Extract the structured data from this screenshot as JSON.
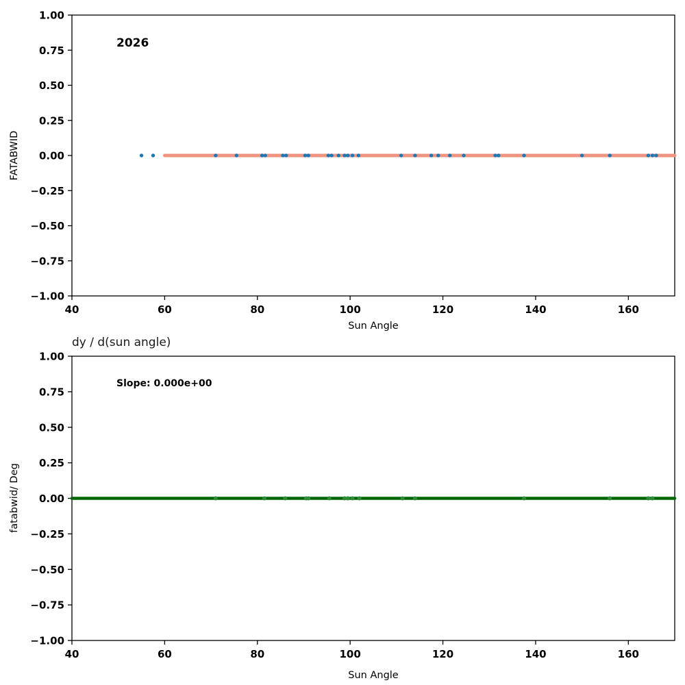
{
  "chart_data": [
    {
      "type": "scatter",
      "annotation": "2026",
      "xlabel": "Sun Angle",
      "ylabel": "FATABWID",
      "xlim": [
        40,
        170
      ],
      "ylim": [
        -1,
        1
      ],
      "xticks": [
        [
          40,
          "40"
        ],
        [
          60,
          "60"
        ],
        [
          80,
          "80"
        ],
        [
          100,
          "100"
        ],
        [
          120,
          "120"
        ],
        [
          140,
          "140"
        ],
        [
          160,
          "160"
        ]
      ],
      "yticks": [
        [
          1,
          "1.00"
        ],
        [
          0.75,
          "0.75"
        ],
        [
          0.5,
          "0.50"
        ],
        [
          0.25,
          "0.25"
        ],
        [
          0,
          "0.00"
        ],
        [
          -0.25,
          "−0.25"
        ],
        [
          -0.5,
          "−0.50"
        ],
        [
          -0.75,
          "−0.75"
        ],
        [
          -1,
          "−1.00"
        ]
      ],
      "scatter_color": "#1f77b4",
      "line_color": "#ee9480",
      "line_x": [
        60,
        170
      ],
      "line_y": 0,
      "scatter_y": 0,
      "scatter_x": [
        55,
        57.5,
        71,
        75.5,
        81,
        81.7,
        85.5,
        86.2,
        90.3,
        91,
        95.3,
        96,
        97.5,
        98.8,
        99.5,
        100.5,
        101.8,
        111,
        114,
        117.5,
        119,
        121.5,
        124.5,
        131.3,
        132,
        137.5,
        150,
        156,
        164.3,
        165.2,
        166
      ],
      "grid": false,
      "legend": "none"
    },
    {
      "type": "scatter",
      "title": "dy / d(sun angle)",
      "annotation": "Slope: 0.000e+00",
      "xlabel": "Sun Angle",
      "ylabel": "fatabwid/ Deg",
      "xlim": [
        40,
        170
      ],
      "ylim": [
        -1,
        1
      ],
      "xticks": [
        [
          40,
          "40"
        ],
        [
          60,
          "60"
        ],
        [
          80,
          "80"
        ],
        [
          100,
          "100"
        ],
        [
          120,
          "120"
        ],
        [
          140,
          "140"
        ],
        [
          160,
          "160"
        ]
      ],
      "yticks": [
        [
          1,
          "1.00"
        ],
        [
          0.75,
          "0.75"
        ],
        [
          0.5,
          "0.50"
        ],
        [
          0.25,
          "0.25"
        ],
        [
          0,
          "0.00"
        ],
        [
          -0.25,
          "−0.25"
        ],
        [
          -0.5,
          "−0.50"
        ],
        [
          -0.75,
          "−0.75"
        ],
        [
          -1,
          "−1.00"
        ]
      ],
      "scatter_color": "#2e8b3a",
      "line_color": "#006400",
      "line_x": [
        40,
        170
      ],
      "line_y": 0,
      "scatter_y": 0,
      "scatter_x": [
        71,
        81.5,
        86,
        90.5,
        91,
        95.5,
        98.8,
        99.5,
        100.5,
        102,
        111.3,
        114,
        137.5,
        156,
        164.3,
        165.2
      ],
      "grid": false,
      "legend": "none"
    }
  ]
}
